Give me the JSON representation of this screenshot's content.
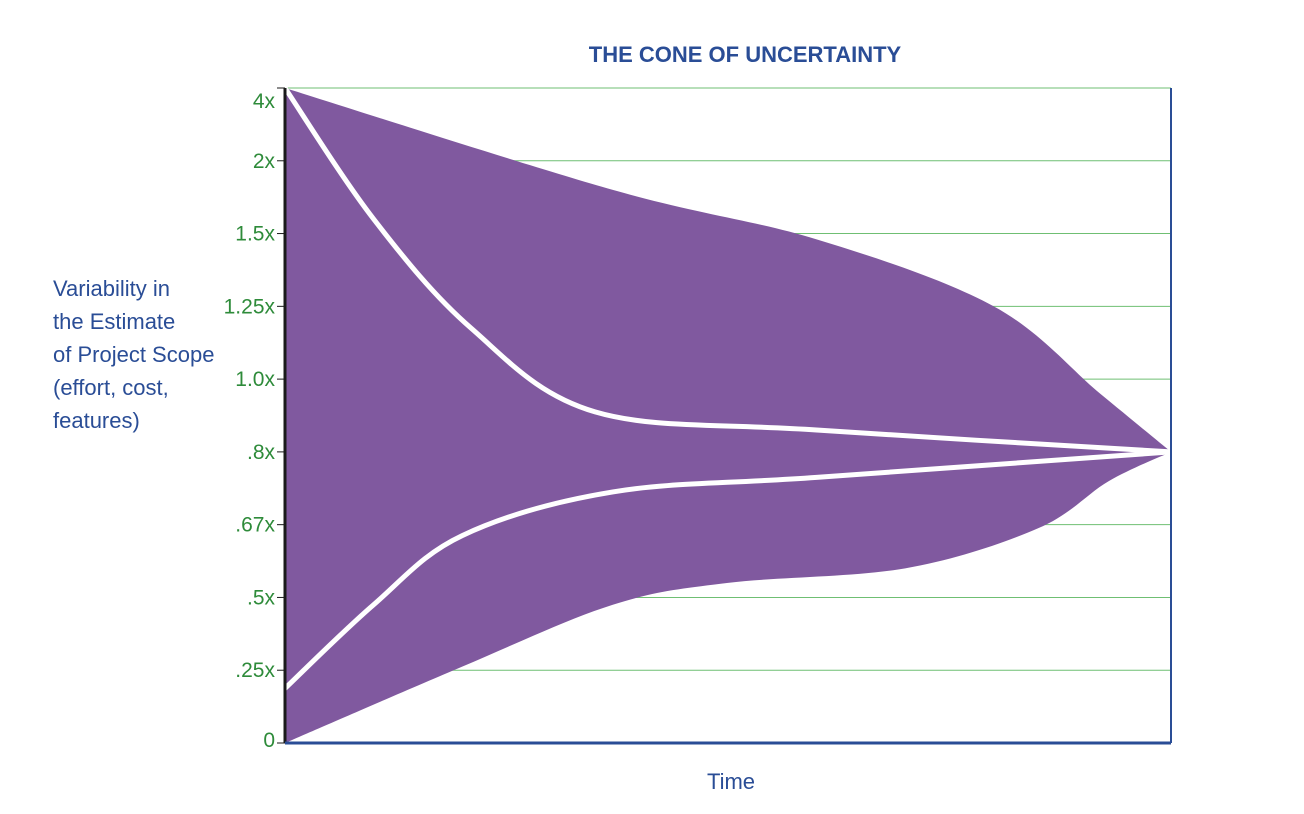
{
  "chart_data": {
    "type": "area",
    "title": "THE CONE OF UNCERTAINTY",
    "xlabel": "Time",
    "ylabel_lines": [
      "Variability in",
      "the Estimate",
      "of Project Scope",
      "(effort, cost,",
      "features)"
    ],
    "y_ticks": [
      "4x",
      "2x",
      "1.5x",
      "1.25x",
      "1.0x",
      ".8x",
      ".67x",
      ".5x",
      ".25x",
      "0"
    ],
    "grid": true,
    "colors": {
      "cone_fill": "#80599f",
      "inner_lines": "#ffffff",
      "axis": "#2a4d96",
      "gridlines": "#6fbf73",
      "tick_labels": "#2e8b3a",
      "title": "#2a4d96"
    },
    "series": [
      {
        "role": "outer-upper-bound",
        "x": [
          0,
          0.37,
          0.6,
          0.8,
          0.92,
          1.0
        ],
        "y": [
          9,
          7.6,
          6.92,
          6.0,
          4.8,
          4.0
        ]
      },
      {
        "role": "outer-lower-bound",
        "x": [
          0,
          0.2,
          0.37,
          0.5,
          0.7,
          0.85,
          0.93,
          1.0
        ],
        "y": [
          0,
          1.05,
          1.9,
          2.2,
          2.4,
          2.95,
          3.6,
          4.0
        ]
      },
      {
        "role": "inner-upper-line",
        "x": [
          0,
          0.1,
          0.21,
          0.35,
          0.6,
          1.0
        ],
        "y": [
          9,
          7.2,
          5.7,
          4.55,
          4.3,
          4.0
        ]
      },
      {
        "role": "inner-lower-line",
        "x": [
          0,
          0.1,
          0.2,
          0.37,
          0.6,
          1.0
        ],
        "y": [
          0.75,
          1.9,
          2.85,
          3.45,
          3.65,
          4.0
        ]
      }
    ]
  }
}
